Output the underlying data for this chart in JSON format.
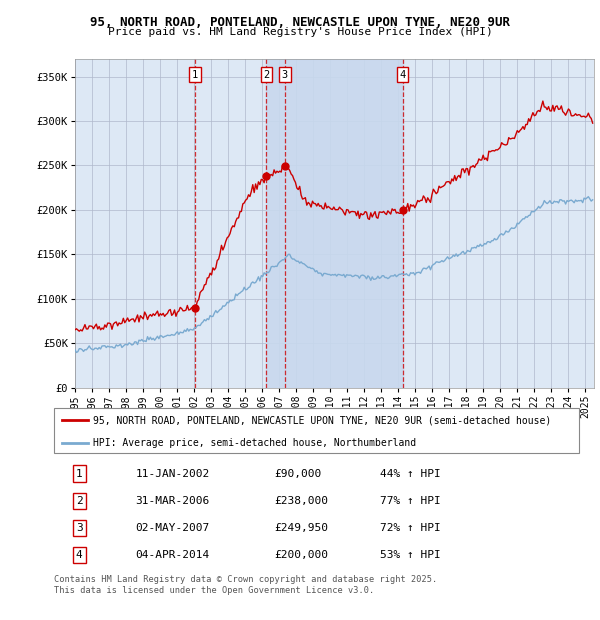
{
  "title_line1": "95, NORTH ROAD, PONTELAND, NEWCASTLE UPON TYNE, NE20 9UR",
  "title_line2": "Price paid vs. HM Land Registry's House Price Index (HPI)",
  "ylabel_ticks": [
    "£0",
    "£50K",
    "£100K",
    "£150K",
    "£200K",
    "£250K",
    "£300K",
    "£350K"
  ],
  "ytick_values": [
    0,
    50000,
    100000,
    150000,
    200000,
    250000,
    300000,
    350000
  ],
  "ylim": [
    0,
    370000
  ],
  "xlim_start": 1995.0,
  "xlim_end": 2025.5,
  "background_color": "#ffffff",
  "plot_bg_color": "#dde8f5",
  "grid_color": "#b0b8cc",
  "red_color": "#cc0000",
  "blue_color": "#7aaad0",
  "vline_color": "#cc0000",
  "annotation_box_color": "#cc0000",
  "shade_between_x1": 2006.25,
  "shade_between_x2": 2014.26,
  "shade_color": "#c8d8ee",
  "purchases": [
    {
      "date_float": 2002.04,
      "price": 90000,
      "label": "1"
    },
    {
      "date_float": 2006.25,
      "price": 238000,
      "label": "2"
    },
    {
      "date_float": 2007.33,
      "price": 249950,
      "label": "3"
    },
    {
      "date_float": 2014.26,
      "price": 200000,
      "label": "4"
    }
  ],
  "table_rows": [
    {
      "num": "1",
      "date": "11-JAN-2002",
      "price": "£90,000",
      "hpi": "44% ↑ HPI"
    },
    {
      "num": "2",
      "date": "31-MAR-2006",
      "price": "£238,000",
      "hpi": "77% ↑ HPI"
    },
    {
      "num": "3",
      "date": "02-MAY-2007",
      "price": "£249,950",
      "hpi": "72% ↑ HPI"
    },
    {
      "num": "4",
      "date": "04-APR-2014",
      "price": "£200,000",
      "hpi": "53% ↑ HPI"
    }
  ],
  "legend_line1": "95, NORTH ROAD, PONTELAND, NEWCASTLE UPON TYNE, NE20 9UR (semi-detached house)",
  "legend_line2": "HPI: Average price, semi-detached house, Northumberland",
  "footer": "Contains HM Land Registry data © Crown copyright and database right 2025.\nThis data is licensed under the Open Government Licence v3.0."
}
